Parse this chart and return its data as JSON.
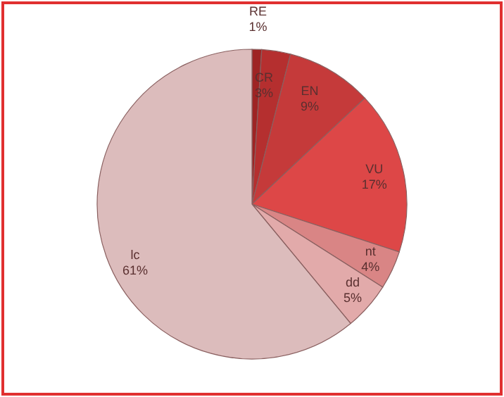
{
  "chart_data": {
    "type": "pie",
    "categories": [
      "RE",
      "CR",
      "EN",
      "VU",
      "nt",
      "dd",
      "lc"
    ],
    "values": [
      1,
      3,
      9,
      17,
      4,
      5,
      61
    ],
    "value_labels": [
      "1%",
      "3%",
      "9%",
      "17%",
      "4%",
      "5%",
      "61%"
    ],
    "colors": [
      "#9e2424",
      "#b52f2f",
      "#c53a3a",
      "#dd4747",
      "#d98585",
      "#e2aaaa",
      "#dcbcbc"
    ]
  }
}
